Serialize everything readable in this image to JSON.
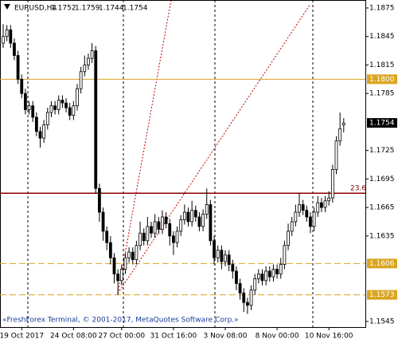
{
  "chart_data": {
    "type": "candlestick",
    "symbol": "EURUSD,H4",
    "footer": "«FreshForex Terminal, © 2001-2017, MetaQuotes Software Corp.»",
    "categories": [
      null,
      null,
      null,
      null,
      null,
      "19 Oct 2017",
      null,
      null,
      null,
      null,
      null,
      null,
      null,
      null,
      null,
      null,
      null,
      null,
      null,
      "24 Oct 08:00",
      null,
      null,
      null,
      null,
      null,
      null,
      null,
      null,
      null,
      null,
      null,
      null,
      "27 Oct 00:00",
      null,
      null,
      null,
      null,
      null,
      null,
      null,
      null,
      null,
      null,
      null,
      null,
      null,
      "31 Oct 16:00",
      null,
      null,
      null,
      null,
      null,
      null,
      null,
      null,
      null,
      null,
      null,
      null,
      null,
      "3 Nov 08:00",
      null,
      null,
      null,
      null,
      null,
      null,
      null,
      null,
      null,
      null,
      null,
      null,
      null,
      "8 Nov 00:00",
      null,
      null,
      null,
      null,
      null,
      null,
      null,
      null,
      null,
      null,
      null,
      null,
      null,
      "10 Nov 16:00",
      null,
      null,
      null,
      null
    ],
    "open": [
      1.1838,
      1.1845,
      1.1852,
      1.1838,
      1.1825,
      1.18,
      1.1785,
      1.1768,
      1.1772,
      1.176,
      1.1745,
      1.1738,
      1.1752,
      1.1765,
      1.1772,
      1.1768,
      1.1778,
      1.1775,
      1.177,
      1.1762,
      1.1772,
      1.179,
      1.1808,
      1.1815,
      1.1822,
      1.183,
      1.1685,
      1.166,
      1.164,
      1.1628,
      1.1612,
      1.1595,
      1.1588,
      1.16,
      1.1612,
      1.1618,
      1.161,
      1.1625,
      1.1638,
      1.163,
      1.1645,
      1.1638,
      1.165,
      1.1642,
      1.1655,
      1.1648,
      1.1635,
      1.1628,
      1.164,
      1.1652,
      1.166,
      1.165,
      1.1662,
      1.1655,
      1.1645,
      1.1658,
      1.1668,
      1.163,
      1.1612,
      1.162,
      1.1608,
      1.1615,
      1.1605,
      1.1598,
      1.1585,
      1.1575,
      1.1565,
      1.1562,
      1.1578,
      1.159,
      1.1595,
      1.1588,
      1.1598,
      1.1592,
      1.16,
      1.1595,
      1.1605,
      1.1625,
      1.164,
      1.165,
      1.166,
      1.1668,
      1.1662,
      1.1655,
      1.1645,
      1.166,
      1.167,
      1.1665,
      1.1672,
      1.1675,
      1.1705,
      1.1735,
      1.1752
    ],
    "high": [
      1.1858,
      1.1857,
      1.1857,
      1.1843,
      1.183,
      1.1805,
      1.179,
      1.1777,
      1.1777,
      1.1765,
      1.175,
      1.1757,
      1.177,
      1.1777,
      1.1777,
      1.1783,
      1.1783,
      1.178,
      1.1775,
      1.1777,
      1.1795,
      1.1813,
      1.1825,
      1.1827,
      1.1838,
      1.1835,
      1.169,
      1.1665,
      1.1645,
      1.1635,
      1.1617,
      1.16,
      1.1605,
      1.1617,
      1.1623,
      1.1623,
      1.163,
      1.165,
      1.1643,
      1.1655,
      1.165,
      1.1658,
      1.1655,
      1.1662,
      1.166,
      1.1653,
      1.164,
      1.1645,
      1.1657,
      1.1668,
      1.1665,
      1.1672,
      1.1667,
      1.166,
      1.1663,
      1.1685,
      1.1673,
      1.1635,
      1.1625,
      1.1625,
      1.162,
      1.162,
      1.161,
      1.1603,
      1.159,
      1.158,
      1.157,
      1.1583,
      1.1595,
      1.16,
      1.16,
      1.1603,
      1.1603,
      1.1605,
      1.1605,
      1.1612,
      1.163,
      1.1648,
      1.1655,
      1.1668,
      1.168,
      1.1673,
      1.1667,
      1.166,
      1.1665,
      1.1677,
      1.1675,
      1.1677,
      1.1682,
      1.171,
      1.174,
      1.1765,
      1.1759
    ],
    "low": [
      1.1833,
      1.184,
      1.1833,
      1.182,
      1.1795,
      1.178,
      1.1763,
      1.1763,
      1.1755,
      1.174,
      1.1728,
      1.1733,
      1.1747,
      1.176,
      1.1763,
      1.1763,
      1.177,
      1.1765,
      1.1757,
      1.1757,
      1.1767,
      1.1785,
      1.1803,
      1.181,
      1.1817,
      1.168,
      1.165,
      1.163,
      1.162,
      1.1605,
      1.1585,
      1.1573,
      1.1583,
      1.1595,
      1.1607,
      1.1605,
      1.1605,
      1.162,
      1.1625,
      1.1625,
      1.1633,
      1.1633,
      1.1637,
      1.1637,
      1.1643,
      1.1625,
      1.1615,
      1.1623,
      1.1635,
      1.1647,
      1.1645,
      1.1645,
      1.165,
      1.164,
      1.164,
      1.1653,
      1.1625,
      1.1605,
      1.1607,
      1.16,
      1.1603,
      1.1598,
      1.159,
      1.1578,
      1.1568,
      1.1555,
      1.1553,
      1.1557,
      1.1573,
      1.1585,
      1.1583,
      1.1583,
      1.1587,
      1.1587,
      1.159,
      1.159,
      1.16,
      1.162,
      1.1635,
      1.1645,
      1.1655,
      1.1657,
      1.165,
      1.1638,
      1.164,
      1.1655,
      1.166,
      1.166,
      1.1667,
      1.167,
      1.17,
      1.173,
      1.1744
    ],
    "close": [
      1.1845,
      1.1852,
      1.1838,
      1.1825,
      1.18,
      1.1785,
      1.1768,
      1.1772,
      1.176,
      1.1745,
      1.1738,
      1.1752,
      1.1765,
      1.1772,
      1.1768,
      1.1778,
      1.1775,
      1.177,
      1.1762,
      1.1772,
      1.179,
      1.1808,
      1.1815,
      1.1822,
      1.183,
      1.1685,
      1.166,
      1.164,
      1.1628,
      1.1612,
      1.1595,
      1.1588,
      1.16,
      1.1612,
      1.1618,
      1.161,
      1.1625,
      1.1638,
      1.163,
      1.1645,
      1.1638,
      1.165,
      1.1642,
      1.1655,
      1.1648,
      1.1635,
      1.1628,
      1.164,
      1.1652,
      1.166,
      1.165,
      1.1662,
      1.1655,
      1.1645,
      1.1658,
      1.1668,
      1.163,
      1.1612,
      1.162,
      1.1608,
      1.1615,
      1.1605,
      1.1598,
      1.1585,
      1.1575,
      1.1565,
      1.1562,
      1.1578,
      1.159,
      1.1595,
      1.1588,
      1.1598,
      1.1592,
      1.16,
      1.1595,
      1.1605,
      1.1625,
      1.164,
      1.165,
      1.166,
      1.1668,
      1.1662,
      1.1655,
      1.1645,
      1.166,
      1.167,
      1.1665,
      1.1672,
      1.1675,
      1.1705,
      1.1735,
      1.1748,
      1.1754
    ],
    "ylim": [
      1.1545,
      1.1875
    ],
    "yticks": [
      1.1875,
      1.1845,
      1.1815,
      1.1785,
      1.1725,
      1.1695,
      1.1665,
      1.1635,
      1.1545
    ],
    "levels": [
      {
        "value": 1.18,
        "label": "1.1800",
        "color": "#daa520",
        "style": "solid"
      },
      {
        "value": 1.1606,
        "label": "1.1606",
        "color": "#daa520",
        "style": "dashed"
      },
      {
        "value": 1.1573,
        "label": "1.1573",
        "color": "#daa520",
        "style": "dashed"
      }
    ],
    "bid": 1.1754,
    "fibo": {
      "value": 1.168,
      "label": "23.6",
      "color": "#8b0000"
    }
  }
}
